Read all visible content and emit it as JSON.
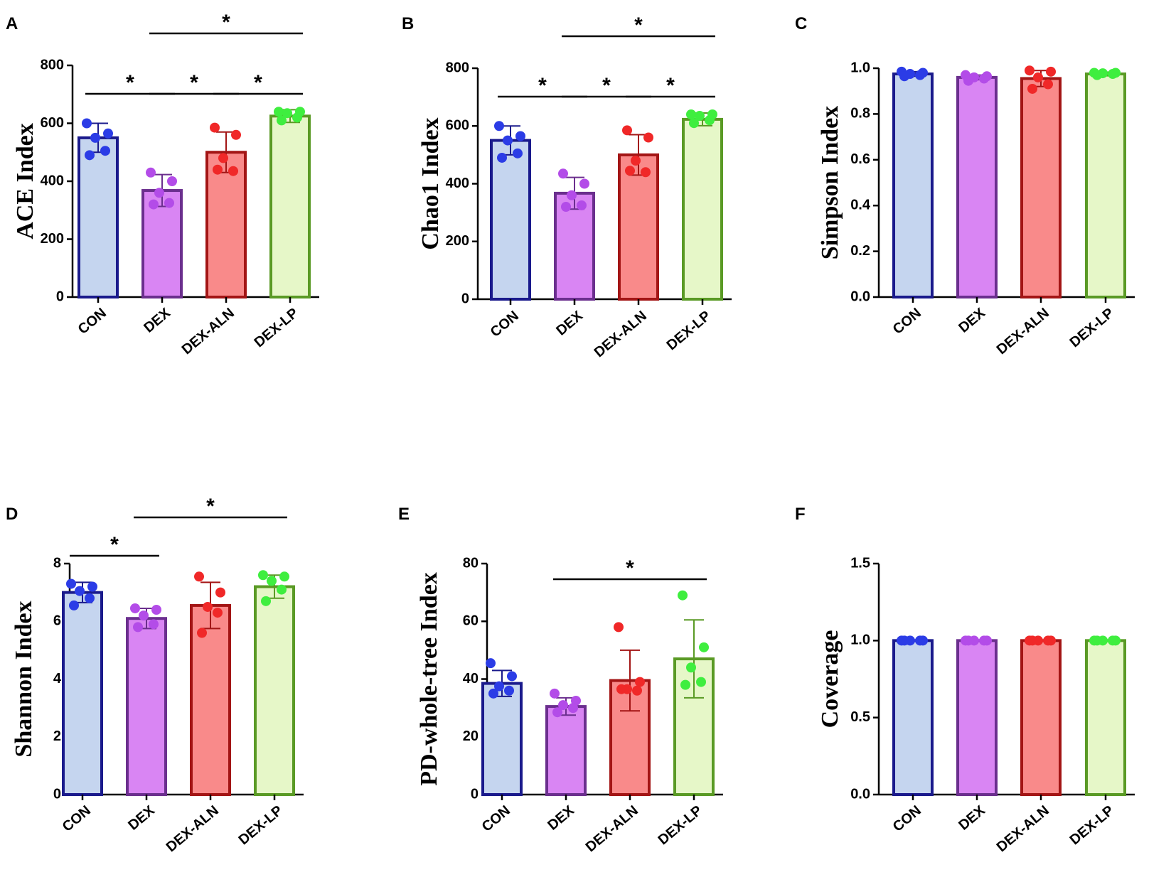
{
  "figure": {
    "groups": [
      "CON",
      "DEX",
      "DEX-ALN",
      "DEX-LP"
    ],
    "group_colors": {
      "fill": [
        "#c5d5ef",
        "#d985f3",
        "#f98a8a",
        "#e6f7c8"
      ],
      "stroke": [
        "#1a1a8c",
        "#6b2f8e",
        "#a31515",
        "#5a9a25"
      ],
      "dot": [
        "#2b3ce6",
        "#b34ce8",
        "#f02828",
        "#3fee3f"
      ]
    }
  },
  "chart_data": [
    {
      "panel": "A",
      "type": "bar",
      "ylabel": "ACE Index",
      "categories": [
        "CON",
        "DEX",
        "DEX-ALN",
        "DEX-LP"
      ],
      "ylim": [
        0,
        800
      ],
      "yticks": [
        0,
        200,
        400,
        600,
        800
      ],
      "ytick_labels": [
        "0",
        "200",
        "400",
        "600",
        "800"
      ],
      "means": [
        550,
        368,
        500,
        625
      ],
      "sd": [
        50,
        55,
        70,
        22
      ],
      "points": [
        [
          600,
          565,
          550,
          505,
          490
        ],
        [
          430,
          400,
          360,
          325,
          320
        ],
        [
          585,
          560,
          480,
          435,
          440
        ],
        [
          640,
          640,
          635,
          620,
          610
        ]
      ],
      "significance": [
        {
          "from": 0,
          "to": 1,
          "tier": 0,
          "label": "*"
        },
        {
          "from": 1,
          "to": 2,
          "tier": 0,
          "label": "*"
        },
        {
          "from": 2,
          "to": 3,
          "tier": 0,
          "label": "*"
        },
        {
          "from": 1,
          "to": 3,
          "tier": 1,
          "label": "*"
        }
      ]
    },
    {
      "panel": "B",
      "type": "bar",
      "ylabel": "Chao1 Index",
      "categories": [
        "CON",
        "DEX",
        "DEX-ALN",
        "DEX-LP"
      ],
      "ylim": [
        0,
        800
      ],
      "yticks": [
        0,
        200,
        400,
        600,
        800
      ],
      "ytick_labels": [
        "0",
        "200",
        "400",
        "600",
        "800"
      ],
      "means": [
        550,
        367,
        500,
        623
      ],
      "sd": [
        50,
        55,
        70,
        22
      ],
      "points": [
        [
          600,
          565,
          550,
          505,
          490
        ],
        [
          435,
          400,
          360,
          325,
          320
        ],
        [
          585,
          560,
          480,
          440,
          445
        ],
        [
          640,
          640,
          635,
          620,
          610
        ]
      ],
      "significance": [
        {
          "from": 0,
          "to": 1,
          "tier": 0,
          "label": "*"
        },
        {
          "from": 1,
          "to": 2,
          "tier": 0,
          "label": "*"
        },
        {
          "from": 2,
          "to": 3,
          "tier": 0,
          "label": "*"
        },
        {
          "from": 1,
          "to": 3,
          "tier": 1,
          "label": "*"
        }
      ]
    },
    {
      "panel": "C",
      "type": "bar",
      "ylabel": "Simpson Index",
      "categories": [
        "CON",
        "DEX",
        "DEX-ALN",
        "DEX-LP"
      ],
      "ylim": [
        0,
        1.0
      ],
      "yticks": [
        0,
        0.2,
        0.4,
        0.6,
        0.8,
        1.0
      ],
      "ytick_labels": [
        "0.0",
        "0.2",
        "0.4",
        "0.6",
        "0.8",
        "1.0"
      ],
      "means": [
        0.975,
        0.96,
        0.955,
        0.975
      ],
      "sd": [
        0.01,
        0.01,
        0.035,
        0.008
      ],
      "points": [
        [
          0.985,
          0.98,
          0.975,
          0.97,
          0.965
        ],
        [
          0.97,
          0.965,
          0.96,
          0.955,
          0.945
        ],
        [
          0.99,
          0.985,
          0.96,
          0.93,
          0.91
        ],
        [
          0.98,
          0.98,
          0.978,
          0.975,
          0.97
        ]
      ],
      "significance": []
    },
    {
      "panel": "D",
      "type": "bar",
      "ylabel": "Shannon Index",
      "categories": [
        "CON",
        "DEX",
        "DEX-ALN",
        "DEX-LP"
      ],
      "ylim": [
        0,
        8
      ],
      "yticks": [
        0,
        2,
        4,
        6,
        8
      ],
      "ytick_labels": [
        "0",
        "2",
        "4",
        "6",
        "8"
      ],
      "means": [
        7.0,
        6.1,
        6.55,
        7.2
      ],
      "sd": [
        0.35,
        0.35,
        0.8,
        0.4
      ],
      "points": [
        [
          7.3,
          7.2,
          7.05,
          6.8,
          6.55
        ],
        [
          6.45,
          6.4,
          6.2,
          5.9,
          5.8
        ],
        [
          7.55,
          7.0,
          6.5,
          6.3,
          5.6
        ],
        [
          7.6,
          7.55,
          7.4,
          7.1,
          6.7
        ]
      ],
      "significance": [
        {
          "from": 0,
          "to": 1,
          "tier": 0,
          "label": "*"
        },
        {
          "from": 1,
          "to": 3,
          "tier": 1,
          "label": "*"
        }
      ]
    },
    {
      "panel": "E",
      "type": "bar",
      "ylabel": "PD-whole-tree Index",
      "categories": [
        "CON",
        "DEX",
        "DEX-ALN",
        "DEX-LP"
      ],
      "ylim": [
        0,
        80
      ],
      "yticks": [
        0,
        20,
        40,
        60,
        80
      ],
      "ytick_labels": [
        "0",
        "20",
        "40",
        "60",
        "80"
      ],
      "means": [
        38.5,
        30.5,
        39.5,
        47
      ],
      "sd": [
        4.5,
        3,
        10.5,
        13.5
      ],
      "points": [
        [
          45.5,
          41,
          37.5,
          36,
          35
        ],
        [
          35,
          32.5,
          31,
          30,
          28.5
        ],
        [
          58,
          39,
          36.5,
          36,
          36.5
        ],
        [
          69,
          51,
          44,
          39,
          38
        ]
      ],
      "significance": [
        {
          "from": 1,
          "to": 3,
          "tier": 0,
          "label": "*"
        }
      ]
    },
    {
      "panel": "F",
      "type": "bar",
      "ylabel": "Coverage",
      "categories": [
        "CON",
        "DEX",
        "DEX-ALN",
        "DEX-LP"
      ],
      "ylim": [
        0,
        1.5
      ],
      "yticks": [
        0,
        0.5,
        1.0,
        1.5
      ],
      "ytick_labels": [
        "0.0",
        "0.5",
        "1.0",
        "1.5"
      ],
      "means": [
        1.0,
        1.0,
        1.0,
        1.0
      ],
      "sd": [
        0.002,
        0.002,
        0.002,
        0.002
      ],
      "points": [
        [
          1.0,
          1.0,
          1.0,
          1.0,
          1.0
        ],
        [
          1.0,
          1.0,
          1.0,
          1.0,
          1.0
        ],
        [
          1.0,
          1.0,
          1.0,
          1.0,
          1.0
        ],
        [
          1.0,
          1.0,
          1.0,
          1.0,
          1.0
        ]
      ],
      "significance": []
    }
  ]
}
